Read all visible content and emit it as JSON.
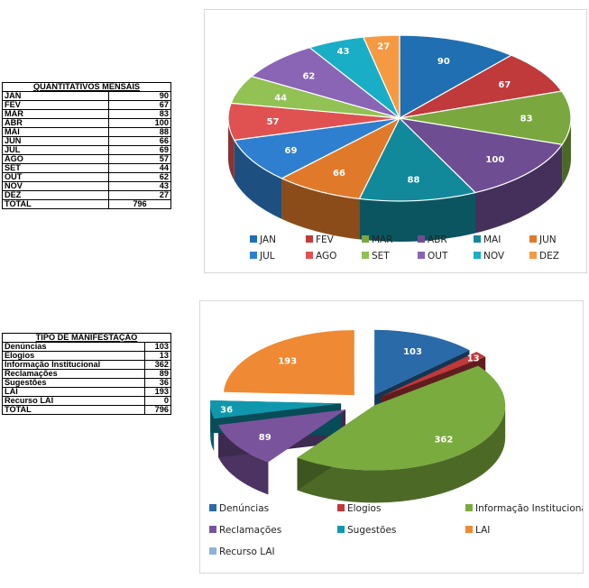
{
  "monthly_table": {
    "title": "QUANTITATIVOS MENSAIS",
    "rows": [
      {
        "label": "JAN",
        "value": "90"
      },
      {
        "label": "FEV",
        "value": "67"
      },
      {
        "label": "MAR",
        "value": "83"
      },
      {
        "label": "ABR",
        "value": "100"
      },
      {
        "label": "MAI",
        "value": "88"
      },
      {
        "label": "JUN",
        "value": "66"
      },
      {
        "label": "JUL",
        "value": "69"
      },
      {
        "label": "AGO",
        "value": "57"
      },
      {
        "label": "SET",
        "value": "44"
      },
      {
        "label": "OUT",
        "value": "62"
      },
      {
        "label": "NOV",
        "value": "43"
      },
      {
        "label": "DEZ",
        "value": "27"
      }
    ],
    "total_label": "TOTAL",
    "total_value": "796"
  },
  "type_table": {
    "title": "TIPO DE MANIFESTAÇÃO",
    "rows": [
      {
        "label": "Denúncias",
        "value": "103"
      },
      {
        "label": "Elogios",
        "value": "13"
      },
      {
        "label": "Informação Institucional",
        "value": "362"
      },
      {
        "label": "Reclamações",
        "value": "89"
      },
      {
        "label": "Sugestões",
        "value": "36"
      },
      {
        "label": "LAI",
        "value": "193"
      },
      {
        "label": "Recurso LAI",
        "value": "0"
      }
    ],
    "total_label": "TOTAL",
    "total_value": "796"
  },
  "chart_data": [
    {
      "type": "pie",
      "title": "",
      "categories": [
        "JAN",
        "FEV",
        "MAR",
        "ABR",
        "MAI",
        "JUN",
        "JUL",
        "AGO",
        "SET",
        "OUT",
        "NOV",
        "DEZ"
      ],
      "values": [
        90,
        67,
        83,
        100,
        88,
        66,
        69,
        57,
        44,
        62,
        43,
        27
      ],
      "colors": [
        "#1f6fb2",
        "#c0393b",
        "#7aa83f",
        "#6e4d93",
        "#11899b",
        "#e07a2a",
        "#2f7fd0",
        "#e05252",
        "#92c154",
        "#8a64b5",
        "#1aaec6",
        "#f59a43"
      ],
      "legend": "bottom"
    },
    {
      "type": "pie",
      "title": "",
      "exploded": true,
      "categories": [
        "Denúncias",
        "Elogios",
        "Informação Institucional",
        "Reclamações",
        "Sugestões",
        "LAI",
        "Recurso LAI"
      ],
      "values": [
        103,
        13,
        362,
        89,
        36,
        193,
        0
      ],
      "colors": [
        "#2a6aa8",
        "#c0393b",
        "#7aab3e",
        "#7a539d",
        "#0f98ad",
        "#ef8933",
        "#8eb3d8"
      ],
      "legend": "bottom"
    }
  ]
}
